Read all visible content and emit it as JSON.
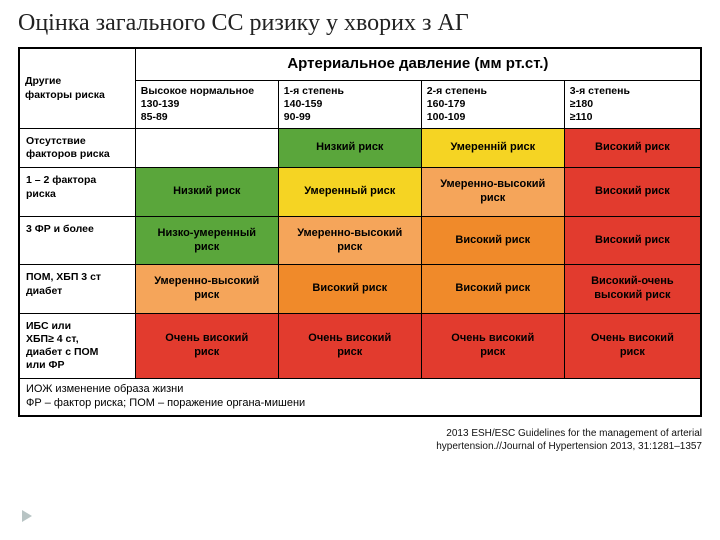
{
  "title": "Оцінка загального СС ризику у хворих з АГ",
  "pressure_header": "Артериальное давление (мм рт.ст.)",
  "colors": {
    "green": "#5aa63b",
    "yellow": "#f5d423",
    "orange": "#f08a2a",
    "orange_light": "#f5a55a",
    "red": "#e23b2e",
    "white": "#ffffff"
  },
  "columns": {
    "risk_factors_label": "Другие\nфакторы риска",
    "c1": {
      "title": "Высокое нормальное",
      "sys": "130-139",
      "dia": "85-89"
    },
    "c2": {
      "title": "1-я степень",
      "sys": "140-159",
      "dia": "90-99"
    },
    "c3": {
      "title": "2-я степень",
      "sys": "160-179",
      "dia": "100-109"
    },
    "c4": {
      "title": "3-я степень",
      "sys": "≥180",
      "dia": "≥110"
    }
  },
  "rows": [
    {
      "label": "Отсутствие\nфакторов риска",
      "cells": [
        {
          "text": "",
          "color": "white"
        },
        {
          "text": "Низкий риск",
          "color": "green"
        },
        {
          "text": "Умеренній риск",
          "color": "yellow"
        },
        {
          "text": "Високий риск",
          "color": "red"
        }
      ]
    },
    {
      "label": "1 – 2 фактора\nриска",
      "cells": [
        {
          "text": "Низкий риск",
          "color": "green"
        },
        {
          "text": "Умеренный риск",
          "color": "yellow"
        },
        {
          "text": "Умеренно-высокий\nриск",
          "color": "orange_light"
        },
        {
          "text": "Високий риск",
          "color": "red"
        }
      ]
    },
    {
      "label": "3 ФР и более",
      "cells": [
        {
          "text": "Низко-умеренный\nриск",
          "color": "green"
        },
        {
          "text": "Умеренно-высокий\nриск",
          "color": "orange_light"
        },
        {
          "text": "Високий риск",
          "color": "orange"
        },
        {
          "text": "Високий риск",
          "color": "red"
        }
      ]
    },
    {
      "label": "ПОМ, ХБП 3 ст\nдиабет",
      "cells": [
        {
          "text": "Умеренно-высокий\nриск",
          "color": "orange_light"
        },
        {
          "text": "Високий риск",
          "color": "orange"
        },
        {
          "text": "Високий риск",
          "color": "orange"
        },
        {
          "text": "Високий-очень\nвысокий риск",
          "color": "red"
        }
      ]
    },
    {
      "label": "ИБС или\nХБП≥ 4 ст,\nдиабет с ПОМ\nили ФР",
      "cells": [
        {
          "text": "Очень високий\nриск",
          "color": "red"
        },
        {
          "text": "Очень високий\nриск",
          "color": "red"
        },
        {
          "text": "Очень високий\nриск",
          "color": "red"
        },
        {
          "text": "Очень високий\nриск",
          "color": "red"
        }
      ]
    }
  ],
  "footnote": "ИОЖ   изменение образа жизни\nФР – фактор риска; ПОМ – поражение органа-мишени",
  "citation": "2013 ESH/ESC Guidelines for the management of arterial\nhypertension.//Journal of Hypertension 2013, 31:1281–1357"
}
